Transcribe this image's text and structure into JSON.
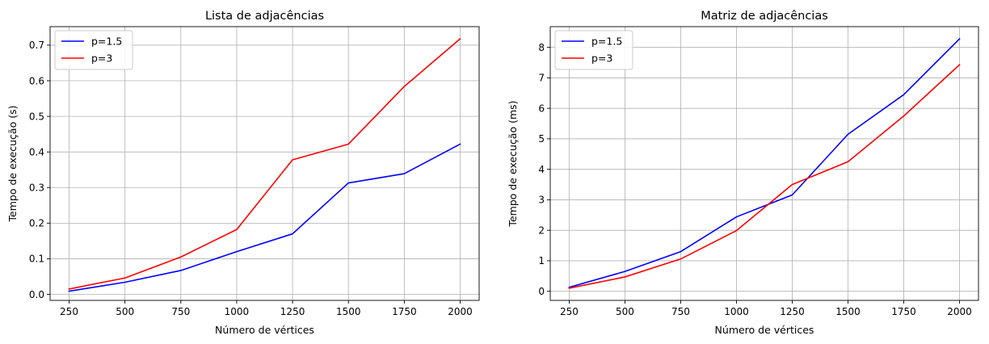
{
  "chart_data": [
    {
      "type": "line",
      "title": "Lista de adjacências",
      "xlabel": "Número de vértices",
      "ylabel": "Tempo de execução (s)",
      "x": [
        250,
        500,
        750,
        1000,
        1250,
        1500,
        1750,
        2000
      ],
      "xlim": [
        165,
        2085
      ],
      "ylim": [
        -0.017,
        0.752
      ],
      "xticks": [
        250,
        500,
        750,
        1000,
        1250,
        1500,
        1750,
        2000
      ],
      "yticks": [
        0.0,
        0.1,
        0.2,
        0.3,
        0.4,
        0.5,
        0.6,
        0.7
      ],
      "ytick_labels": [
        "0.0",
        "0.1",
        "0.2",
        "0.3",
        "0.4",
        "0.5",
        "0.6",
        "0.7"
      ],
      "grid": true,
      "legend": "upper-left",
      "series": [
        {
          "name": "p=1.5",
          "color": "#0000ff",
          "values": [
            0.009,
            0.034,
            0.067,
            0.12,
            0.17,
            0.313,
            0.339,
            0.422
          ]
        },
        {
          "name": "p=3",
          "color": "#ff0000",
          "values": [
            0.015,
            0.046,
            0.105,
            0.182,
            0.378,
            0.422,
            0.584,
            0.718
          ]
        }
      ]
    },
    {
      "type": "line",
      "title": "Matriz de adjacências",
      "xlabel": "Número de vértices",
      "ylabel": "Tempo de execução (ms)",
      "x": [
        250,
        500,
        750,
        1000,
        1250,
        1500,
        1750,
        2000
      ],
      "xlim": [
        165,
        2085
      ],
      "ylim": [
        -0.3,
        8.68
      ],
      "xticks": [
        250,
        500,
        750,
        1000,
        1250,
        1500,
        1750,
        2000
      ],
      "yticks": [
        0,
        1,
        2,
        3,
        4,
        5,
        6,
        7,
        8
      ],
      "ytick_labels": [
        "0",
        "1",
        "2",
        "3",
        "4",
        "5",
        "6",
        "7",
        "8"
      ],
      "grid": true,
      "legend": "upper-left",
      "series": [
        {
          "name": "p=1.5",
          "color": "#0000ff",
          "values": [
            0.13,
            0.65,
            1.3,
            2.44,
            3.16,
            5.15,
            6.45,
            8.28
          ]
        },
        {
          "name": "p=3",
          "color": "#ff0000",
          "values": [
            0.1,
            0.47,
            1.06,
            1.99,
            3.5,
            4.25,
            5.75,
            7.43
          ]
        }
      ]
    }
  ]
}
